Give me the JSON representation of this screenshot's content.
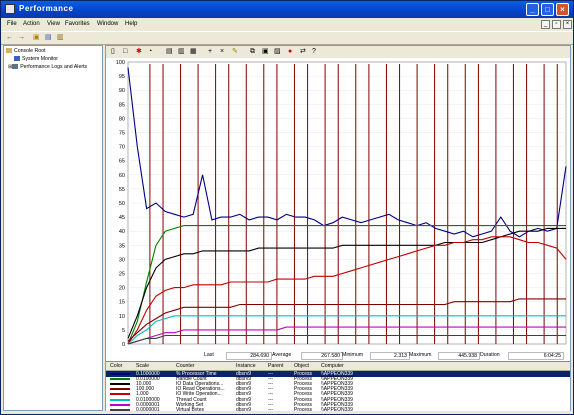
{
  "window": {
    "title": "Performance"
  },
  "menu": [
    "File",
    "Action",
    "View",
    "Favorites",
    "Window",
    "Help"
  ],
  "toolbar_icons": [
    "back-arrow-icon",
    "forward-arrow-icon",
    "up-folder-icon",
    "show-tree-icon",
    "properties-icon"
  ],
  "tree": [
    {
      "label": "Console Root",
      "level": 0
    },
    {
      "label": "System Monitor",
      "level": 1
    },
    {
      "label": "Performance Logs and Alerts",
      "level": 1
    }
  ],
  "stats": {
    "last_label": "Last",
    "last": "284.690",
    "avg_label": "Average",
    "avg": "267.580",
    "min_label": "Minimum",
    "min": "2.313",
    "max_label": "Maximum",
    "max": "445.938",
    "dur_label": "Duration",
    "dur": "6:04:25"
  },
  "legend": {
    "headers": [
      "Color",
      "Scale",
      "Counter",
      "Instance",
      "Parent",
      "Object",
      "Computer"
    ],
    "rows": [
      {
        "color": "#000080",
        "scale": "0.1000000",
        "counter": "% Processor Time",
        "instance": "dbsrv9",
        "parent": "---",
        "object": "Process",
        "computer": "\\\\APPEON339",
        "selected": true
      },
      {
        "color": "#008000",
        "scale": "0.0100000",
        "counter": "Handle Count",
        "instance": "dbsrv9",
        "parent": "---",
        "object": "Process",
        "computer": "\\\\APPEON339"
      },
      {
        "color": "#000000",
        "scale": "10.000",
        "counter": "IO Data Operations...",
        "instance": "dbsrv9",
        "parent": "---",
        "object": "Process",
        "computer": "\\\\APPEON339"
      },
      {
        "color": "#800000",
        "scale": "100.000",
        "counter": "IO Read Operations...",
        "instance": "dbsrv9",
        "parent": "---",
        "object": "Process",
        "computer": "\\\\APPEON339"
      },
      {
        "color": "#c00000",
        "scale": "1.000",
        "counter": "IO Write Operation...",
        "instance": "dbsrv9",
        "parent": "---",
        "object": "Process",
        "computer": "\\\\APPEON339"
      },
      {
        "color": "#00c0c0",
        "scale": "0.0100000",
        "counter": "Thread Count",
        "instance": "dbsrv9",
        "parent": "---",
        "object": "Process",
        "computer": "\\\\APPEON339"
      },
      {
        "color": "#c000c0",
        "scale": "0.0000001",
        "counter": "Working Set",
        "instance": "dbsrv9",
        "parent": "---",
        "object": "Process",
        "computer": "\\\\APPEON339"
      },
      {
        "color": "#404040",
        "scale": "0.0000001",
        "counter": "Virtual Bytes",
        "instance": "dbsrv9",
        "parent": "---",
        "object": "Process",
        "computer": "\\\\APPEON339"
      }
    ]
  },
  "chart_data": {
    "type": "line",
    "ylim": [
      0,
      100
    ],
    "yticks": [
      "100",
      "95",
      "90",
      "85",
      "80",
      "75",
      "70",
      "65",
      "60",
      "55",
      "50",
      "45",
      "40",
      "35",
      "30",
      "25",
      "20",
      "15",
      "10",
      "5",
      "0"
    ],
    "grid": true,
    "series": [
      {
        "color": "#000080",
        "values": [
          98,
          70,
          48,
          50,
          47,
          46,
          45,
          46,
          60,
          44,
          45,
          45,
          46,
          44,
          45,
          45,
          44,
          46,
          45,
          45,
          44,
          42,
          43,
          45,
          44,
          43,
          44,
          45,
          46,
          44,
          43,
          42,
          43,
          41,
          40,
          39,
          40,
          38,
          39,
          40,
          45,
          40,
          38,
          40,
          41,
          40,
          41,
          63
        ]
      },
      {
        "color": "#008000",
        "values": [
          0,
          8,
          22,
          35,
          40,
          41,
          42,
          42,
          42,
          42,
          42,
          42,
          42,
          42,
          42,
          42,
          42,
          42,
          42,
          42,
          42,
          42,
          42,
          42,
          42,
          42,
          42,
          42,
          42,
          42,
          42,
          42,
          42,
          42,
          42,
          42,
          42,
          42,
          42,
          42,
          42,
          42,
          42,
          42,
          42,
          42,
          42,
          42
        ]
      },
      {
        "color": "#000000",
        "values": [
          2,
          10,
          20,
          27,
          30,
          31,
          32,
          32,
          33,
          33,
          33,
          33,
          33,
          33,
          34,
          34,
          34,
          34,
          34,
          34,
          34,
          34,
          34,
          35,
          35,
          35,
          35,
          35,
          35,
          35,
          35,
          35,
          35,
          35,
          36,
          36,
          36,
          36,
          36,
          37,
          38,
          39,
          40,
          40,
          40,
          41,
          41,
          41
        ]
      },
      {
        "color": "#c00000",
        "values": [
          0,
          5,
          12,
          17,
          19,
          20,
          20,
          21,
          21,
          21,
          21,
          22,
          22,
          22,
          22,
          22,
          23,
          23,
          23,
          23,
          24,
          24,
          24,
          25,
          26,
          27,
          28,
          29,
          30,
          31,
          32,
          33,
          34,
          35,
          35,
          36,
          36,
          37,
          37,
          38,
          38,
          38,
          37,
          36,
          36,
          35,
          34,
          30
        ]
      },
      {
        "color": "#800000",
        "values": [
          1,
          4,
          7,
          9,
          11,
          12,
          13,
          13,
          13,
          13,
          13,
          13,
          14,
          14,
          14,
          14,
          14,
          14,
          14,
          14,
          14,
          14,
          14,
          14,
          14,
          14,
          14,
          14,
          14,
          14,
          14,
          14,
          14,
          14,
          14,
          15,
          15,
          15,
          15,
          15,
          15,
          15,
          16,
          16,
          16,
          16,
          16,
          16
        ]
      },
      {
        "color": "#00c0c0",
        "values": [
          0,
          3,
          5,
          8,
          9,
          10,
          10,
          10,
          10,
          10,
          10,
          10,
          10,
          10,
          10,
          10,
          10,
          10,
          10,
          10,
          10,
          10,
          10,
          10,
          10,
          10,
          10,
          10,
          10,
          10,
          10,
          10,
          10,
          10,
          10,
          10,
          10,
          10,
          10,
          10,
          10,
          10,
          10,
          10,
          10,
          10,
          10,
          10
        ]
      },
      {
        "color": "#c000c0",
        "values": [
          0,
          1,
          2,
          3,
          4,
          4,
          5,
          5,
          5,
          5,
          5,
          5,
          5,
          5,
          5,
          5,
          5,
          6,
          6,
          6,
          6,
          6,
          6,
          6,
          6,
          6,
          6,
          6,
          6,
          6,
          6,
          6,
          6,
          6,
          6,
          6,
          6,
          6,
          6,
          6,
          6,
          6,
          6,
          6,
          6,
          6,
          6,
          6
        ]
      },
      {
        "color": "#404040",
        "values": [
          0,
          1,
          2,
          2,
          3,
          3,
          3,
          3,
          3,
          3,
          3,
          3,
          3,
          3,
          3,
          3,
          3,
          3,
          3,
          3,
          3,
          3,
          3,
          3,
          3,
          3,
          3,
          3,
          3,
          3,
          3,
          3,
          3,
          3,
          3,
          3,
          3,
          3,
          3,
          3,
          3,
          3,
          3,
          3,
          3,
          3,
          3,
          3
        ]
      }
    ],
    "spikes": {
      "color": "#800000",
      "x_fraction": [
        0.05,
        0.08,
        0.12,
        0.16,
        0.2,
        0.23,
        0.27,
        0.31,
        0.34,
        0.38,
        0.41,
        0.45,
        0.48,
        0.52,
        0.55,
        0.59,
        0.62,
        0.66,
        0.7,
        0.73,
        0.77,
        0.8,
        0.84,
        0.88,
        0.91,
        0.95,
        0.98
      ]
    }
  }
}
